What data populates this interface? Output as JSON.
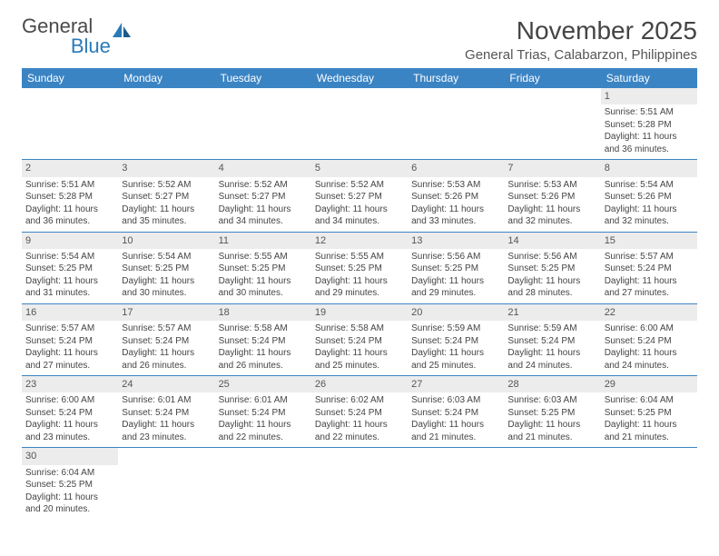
{
  "logo": {
    "text1": "General",
    "text2": "Blue"
  },
  "title": "November 2025",
  "location": "General Trias, Calabarzon, Philippines",
  "colors": {
    "header_bg": "#3b84c4",
    "header_text": "#ffffff",
    "daynum_bg": "#ececec",
    "border": "#3b84c4",
    "text": "#444444",
    "logo_primary": "#4a4a4a",
    "logo_accent": "#2a7ab8"
  },
  "day_headers": [
    "Sunday",
    "Monday",
    "Tuesday",
    "Wednesday",
    "Thursday",
    "Friday",
    "Saturday"
  ],
  "weeks": [
    [
      {
        "blank": true
      },
      {
        "blank": true
      },
      {
        "blank": true
      },
      {
        "blank": true
      },
      {
        "blank": true
      },
      {
        "blank": true
      },
      {
        "day": "1",
        "sunrise": "Sunrise: 5:51 AM",
        "sunset": "Sunset: 5:28 PM",
        "daylight1": "Daylight: 11 hours",
        "daylight2": "and 36 minutes."
      }
    ],
    [
      {
        "day": "2",
        "sunrise": "Sunrise: 5:51 AM",
        "sunset": "Sunset: 5:28 PM",
        "daylight1": "Daylight: 11 hours",
        "daylight2": "and 36 minutes."
      },
      {
        "day": "3",
        "sunrise": "Sunrise: 5:52 AM",
        "sunset": "Sunset: 5:27 PM",
        "daylight1": "Daylight: 11 hours",
        "daylight2": "and 35 minutes."
      },
      {
        "day": "4",
        "sunrise": "Sunrise: 5:52 AM",
        "sunset": "Sunset: 5:27 PM",
        "daylight1": "Daylight: 11 hours",
        "daylight2": "and 34 minutes."
      },
      {
        "day": "5",
        "sunrise": "Sunrise: 5:52 AM",
        "sunset": "Sunset: 5:27 PM",
        "daylight1": "Daylight: 11 hours",
        "daylight2": "and 34 minutes."
      },
      {
        "day": "6",
        "sunrise": "Sunrise: 5:53 AM",
        "sunset": "Sunset: 5:26 PM",
        "daylight1": "Daylight: 11 hours",
        "daylight2": "and 33 minutes."
      },
      {
        "day": "7",
        "sunrise": "Sunrise: 5:53 AM",
        "sunset": "Sunset: 5:26 PM",
        "daylight1": "Daylight: 11 hours",
        "daylight2": "and 32 minutes."
      },
      {
        "day": "8",
        "sunrise": "Sunrise: 5:54 AM",
        "sunset": "Sunset: 5:26 PM",
        "daylight1": "Daylight: 11 hours",
        "daylight2": "and 32 minutes."
      }
    ],
    [
      {
        "day": "9",
        "sunrise": "Sunrise: 5:54 AM",
        "sunset": "Sunset: 5:25 PM",
        "daylight1": "Daylight: 11 hours",
        "daylight2": "and 31 minutes."
      },
      {
        "day": "10",
        "sunrise": "Sunrise: 5:54 AM",
        "sunset": "Sunset: 5:25 PM",
        "daylight1": "Daylight: 11 hours",
        "daylight2": "and 30 minutes."
      },
      {
        "day": "11",
        "sunrise": "Sunrise: 5:55 AM",
        "sunset": "Sunset: 5:25 PM",
        "daylight1": "Daylight: 11 hours",
        "daylight2": "and 30 minutes."
      },
      {
        "day": "12",
        "sunrise": "Sunrise: 5:55 AM",
        "sunset": "Sunset: 5:25 PM",
        "daylight1": "Daylight: 11 hours",
        "daylight2": "and 29 minutes."
      },
      {
        "day": "13",
        "sunrise": "Sunrise: 5:56 AM",
        "sunset": "Sunset: 5:25 PM",
        "daylight1": "Daylight: 11 hours",
        "daylight2": "and 29 minutes."
      },
      {
        "day": "14",
        "sunrise": "Sunrise: 5:56 AM",
        "sunset": "Sunset: 5:25 PM",
        "daylight1": "Daylight: 11 hours",
        "daylight2": "and 28 minutes."
      },
      {
        "day": "15",
        "sunrise": "Sunrise: 5:57 AM",
        "sunset": "Sunset: 5:24 PM",
        "daylight1": "Daylight: 11 hours",
        "daylight2": "and 27 minutes."
      }
    ],
    [
      {
        "day": "16",
        "sunrise": "Sunrise: 5:57 AM",
        "sunset": "Sunset: 5:24 PM",
        "daylight1": "Daylight: 11 hours",
        "daylight2": "and 27 minutes."
      },
      {
        "day": "17",
        "sunrise": "Sunrise: 5:57 AM",
        "sunset": "Sunset: 5:24 PM",
        "daylight1": "Daylight: 11 hours",
        "daylight2": "and 26 minutes."
      },
      {
        "day": "18",
        "sunrise": "Sunrise: 5:58 AM",
        "sunset": "Sunset: 5:24 PM",
        "daylight1": "Daylight: 11 hours",
        "daylight2": "and 26 minutes."
      },
      {
        "day": "19",
        "sunrise": "Sunrise: 5:58 AM",
        "sunset": "Sunset: 5:24 PM",
        "daylight1": "Daylight: 11 hours",
        "daylight2": "and 25 minutes."
      },
      {
        "day": "20",
        "sunrise": "Sunrise: 5:59 AM",
        "sunset": "Sunset: 5:24 PM",
        "daylight1": "Daylight: 11 hours",
        "daylight2": "and 25 minutes."
      },
      {
        "day": "21",
        "sunrise": "Sunrise: 5:59 AM",
        "sunset": "Sunset: 5:24 PM",
        "daylight1": "Daylight: 11 hours",
        "daylight2": "and 24 minutes."
      },
      {
        "day": "22",
        "sunrise": "Sunrise: 6:00 AM",
        "sunset": "Sunset: 5:24 PM",
        "daylight1": "Daylight: 11 hours",
        "daylight2": "and 24 minutes."
      }
    ],
    [
      {
        "day": "23",
        "sunrise": "Sunrise: 6:00 AM",
        "sunset": "Sunset: 5:24 PM",
        "daylight1": "Daylight: 11 hours",
        "daylight2": "and 23 minutes."
      },
      {
        "day": "24",
        "sunrise": "Sunrise: 6:01 AM",
        "sunset": "Sunset: 5:24 PM",
        "daylight1": "Daylight: 11 hours",
        "daylight2": "and 23 minutes."
      },
      {
        "day": "25",
        "sunrise": "Sunrise: 6:01 AM",
        "sunset": "Sunset: 5:24 PM",
        "daylight1": "Daylight: 11 hours",
        "daylight2": "and 22 minutes."
      },
      {
        "day": "26",
        "sunrise": "Sunrise: 6:02 AM",
        "sunset": "Sunset: 5:24 PM",
        "daylight1": "Daylight: 11 hours",
        "daylight2": "and 22 minutes."
      },
      {
        "day": "27",
        "sunrise": "Sunrise: 6:03 AM",
        "sunset": "Sunset: 5:24 PM",
        "daylight1": "Daylight: 11 hours",
        "daylight2": "and 21 minutes."
      },
      {
        "day": "28",
        "sunrise": "Sunrise: 6:03 AM",
        "sunset": "Sunset: 5:25 PM",
        "daylight1": "Daylight: 11 hours",
        "daylight2": "and 21 minutes."
      },
      {
        "day": "29",
        "sunrise": "Sunrise: 6:04 AM",
        "sunset": "Sunset: 5:25 PM",
        "daylight1": "Daylight: 11 hours",
        "daylight2": "and 21 minutes."
      }
    ],
    [
      {
        "day": "30",
        "sunrise": "Sunrise: 6:04 AM",
        "sunset": "Sunset: 5:25 PM",
        "daylight1": "Daylight: 11 hours",
        "daylight2": "and 20 minutes."
      },
      {
        "blank": true
      },
      {
        "blank": true
      },
      {
        "blank": true
      },
      {
        "blank": true
      },
      {
        "blank": true
      },
      {
        "blank": true
      }
    ]
  ]
}
